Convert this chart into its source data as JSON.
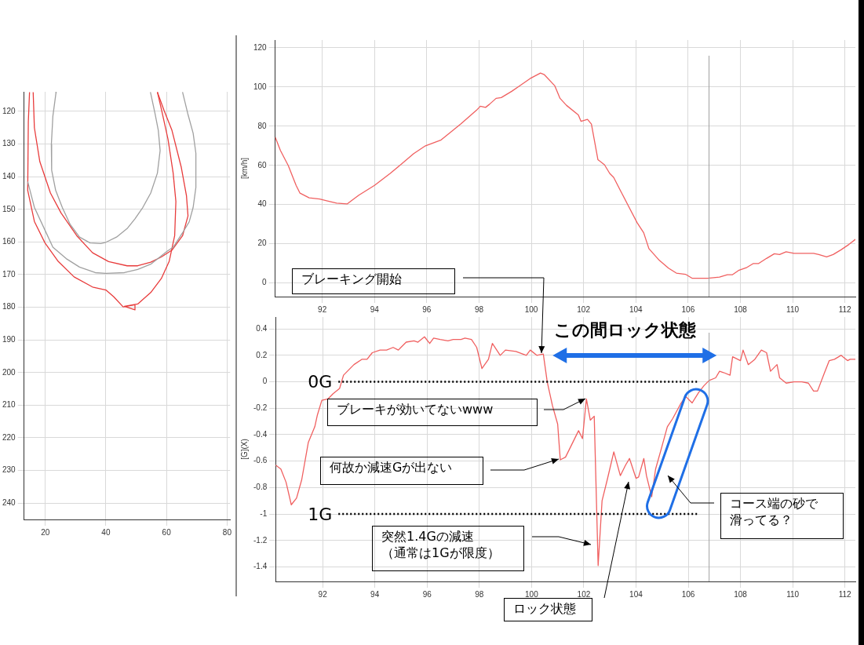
{
  "chart_data": [
    {
      "type": "line",
      "xlim": [
        13,
        81
      ],
      "ylim": [
        245,
        114
      ],
      "xticks": [
        20,
        40,
        60,
        80
      ],
      "yticks": [
        120,
        130,
        140,
        150,
        160,
        170,
        180,
        190,
        200,
        210,
        220,
        230,
        240
      ],
      "grid": true,
      "series": [
        {
          "color": "#a0a0a0",
          "x": [
            23.7,
            23.5,
            22.5,
            22,
            22.1,
            23.4,
            25.6,
            28.2,
            31.3,
            34.8,
            38.3,
            40,
            43.5,
            47,
            49.6,
            52.2,
            54.8,
            57,
            57.9,
            57.3,
            56.2,
            54.7
          ],
          "values": [
            114.1,
            114.5,
            121.5,
            130.2,
            138,
            144.1,
            149.4,
            154.6,
            158.5,
            160.3,
            160.5,
            160.1,
            158.5,
            155.9,
            152.9,
            149.4,
            145,
            138.9,
            132,
            125.8,
            120.6,
            114.1
          ]
        },
        {
          "color": "#a0a0a0",
          "x": [
            14.2,
            16.4,
            19.9,
            22.5,
            26.9,
            31.3,
            36.5,
            40,
            46.1,
            50.5,
            54.8,
            60.1,
            62.2,
            65.3,
            67.5,
            68.8,
            69.7,
            69.7,
            68.8,
            67,
            65.3
          ],
          "values": [
            141.5,
            149.4,
            156.4,
            161.6,
            165.1,
            167.7,
            169.4,
            169.6,
            169.4,
            168.4,
            166.8,
            162.9,
            161.6,
            157.2,
            153.8,
            149.4,
            143.3,
            132.8,
            126.7,
            120.6,
            114.1
          ]
        },
        {
          "color": "#e83c3c",
          "x": [
            16,
            16.4,
            18.2,
            21.7,
            25.2,
            30.4,
            35.6,
            40.9,
            47,
            50.5,
            54.8,
            58.3,
            61.8,
            65.3,
            67.1,
            66.6,
            64.9,
            61.8,
            59.2,
            57
          ],
          "values": [
            114.1,
            125,
            135.4,
            145,
            151.1,
            158.1,
            163.3,
            166,
            167.3,
            167.3,
            166.2,
            164.6,
            162.5,
            158.1,
            152,
            145.9,
            137.2,
            125.8,
            119.7,
            114.1
          ]
        },
        {
          "color": "#e83c3c",
          "x": [
            14.8,
            14.4,
            14.2,
            16.4,
            19.9,
            24.3,
            29.5,
            35.6,
            40,
            42.6,
            45.7,
            49.6,
            49.6,
            46.1,
            50.5,
            54.8,
            58.3,
            60.9,
            62.7,
            63.1,
            62.2,
            60.5,
            58.4,
            57
          ],
          "values": [
            114.1,
            123.2,
            144.2,
            153.7,
            160.3,
            166,
            170.7,
            173.8,
            174.7,
            176.8,
            179.9,
            179.2,
            180.8,
            179.7,
            179,
            175.5,
            171.2,
            165.9,
            158.1,
            147.6,
            138.9,
            128.5,
            119.7,
            114.1
          ]
        }
      ]
    },
    {
      "type": "line",
      "ylabel": "[km/h]",
      "xlim": [
        90.2,
        112.4
      ],
      "ylim": [
        -7,
        124
      ],
      "xticks": [
        92,
        94,
        96,
        98,
        100,
        102,
        104,
        106,
        108,
        110,
        112
      ],
      "yticks": [
        0,
        20,
        40,
        60,
        80,
        100,
        120
      ],
      "grid": true,
      "ref_lines": [
        {
          "axis": "x",
          "value": 106.8,
          "color": "#a0a0a0"
        }
      ],
      "series": [
        {
          "color": "#f06060",
          "x": [
            90.2,
            90.4,
            90.7,
            91,
            91.15,
            91.5,
            91.9,
            92.2,
            92.55,
            92.95,
            93.4,
            94,
            94.6,
            95.05,
            95.5,
            95.95,
            96.55,
            97.3,
            97.9,
            98.05,
            98.25,
            98.4,
            98.65,
            98.85,
            99.25,
            99.55,
            99.95,
            100.35,
            100.5,
            100.9,
            101.1,
            101.35,
            101.8,
            101.9,
            102.15,
            102.3,
            102.55,
            102.8,
            103,
            103.15,
            103.4,
            103.7,
            104.05,
            104.3,
            104.5,
            104.9,
            105.25,
            105.55,
            105.9,
            106.15,
            106.75,
            107.2,
            107.5,
            107.7,
            107.95,
            108.25,
            108.5,
            108.7,
            109,
            109.3,
            109.5,
            109.75,
            110.05,
            110.8,
            111,
            111.3,
            111.55,
            111.85,
            112.15,
            112.4
          ],
          "values": [
            74.4,
            67.6,
            59.9,
            49.8,
            45.8,
            43.4,
            42.8,
            41.8,
            40.7,
            40.3,
            44.8,
            49.8,
            55.9,
            60.9,
            66,
            70,
            73,
            81.1,
            88.1,
            90.2,
            89.6,
            91.2,
            94.2,
            94.6,
            97.8,
            100.6,
            104.3,
            107.1,
            106.3,
            100.6,
            94.2,
            90.6,
            85.7,
            82.5,
            83.5,
            81.1,
            62.9,
            60.3,
            55.9,
            53.9,
            47.4,
            39.7,
            30.7,
            25.6,
            17.5,
            11.5,
            7.5,
            5,
            4.4,
            2.4,
            2.4,
            3,
            4.2,
            4.2,
            6.5,
            7.9,
            9.9,
            9.9,
            12.5,
            14.9,
            14.5,
            15.9,
            15.1,
            15.1,
            14.5,
            13.3,
            14.5,
            16.9,
            19.6,
            22.2
          ]
        }
      ]
    },
    {
      "type": "line",
      "ylabel": "[G](X)",
      "xlim": [
        90.2,
        112.4
      ],
      "ylim": [
        -1.51,
        0.49
      ],
      "xticks": [
        92,
        94,
        96,
        98,
        100,
        102,
        104,
        106,
        108,
        110,
        112
      ],
      "yticks": [
        0.4,
        0.2,
        0,
        -0.2,
        -0.4,
        -0.6,
        -0.8,
        -1,
        -1.2,
        -1.4
      ],
      "grid": true,
      "ref_lines": [
        {
          "axis": "x",
          "value": 106.8,
          "color": "#a0a0a0"
        },
        {
          "axis": "y",
          "value": 0,
          "label": "0G",
          "color": "#000000",
          "line_style": "dotted"
        },
        {
          "axis": "y",
          "value": -1,
          "label": "1G",
          "color": "#000000",
          "line_style": "dotted"
        }
      ],
      "annotations": [
        "この間ロック状態",
        "ブレーキング開始",
        "ブレーキが効いてないwww",
        "何故か減速Gが出ない",
        "突然1.4Gの減速",
        "（通常は1Gが限度）",
        "ロック状態",
        "コース端の砂で",
        "滑ってる？"
      ],
      "series": [
        {
          "color": "#f06060",
          "x": [
            90.2,
            90.4,
            90.6,
            90.8,
            91,
            91.2,
            91.45,
            91.7,
            91.8,
            91.97,
            92.2,
            92.4,
            92.65,
            92.8,
            93.2,
            93.5,
            93.7,
            93.9,
            94.2,
            94.45,
            94.7,
            94.9,
            95.2,
            95.5,
            95.65,
            95.9,
            96.1,
            96.25,
            96.5,
            96.8,
            97,
            97.3,
            97.45,
            97.7,
            97.9,
            98.1,
            98.35,
            98.5,
            98.8,
            99,
            99.4,
            99.8,
            99.95,
            100.2,
            100.45,
            100.6,
            100.8,
            101,
            101.1,
            101.3,
            101.6,
            101.8,
            101.95,
            102.1,
            102.25,
            102.4,
            102.55,
            102.7,
            102.9,
            103.15,
            103.4,
            103.6,
            103.75,
            104,
            104.1,
            104.3,
            104.4,
            104.6,
            104.75,
            104.95,
            105.2,
            105.4,
            105.7,
            105.9,
            106.15,
            106.4,
            106.6,
            106.8,
            107.05,
            107.2,
            107.35,
            107.6,
            107.7,
            108,
            108.1,
            108.3,
            108.55,
            108.8,
            109,
            109.15,
            109.4,
            109.5,
            109.75,
            110.05,
            110.35,
            110.6,
            110.8,
            110.95,
            111.2,
            111.4,
            111.6,
            111.85,
            112.1,
            112.2,
            112.4
          ],
          "values": [
            -0.63,
            -0.66,
            -0.76,
            -0.93,
            -0.88,
            -0.74,
            -0.46,
            -0.34,
            -0.25,
            -0.14,
            -0.13,
            -0.09,
            -0.05,
            0.05,
            0.13,
            0.17,
            0.17,
            0.22,
            0.24,
            0.24,
            0.26,
            0.24,
            0.3,
            0.31,
            0.3,
            0.34,
            0.29,
            0.33,
            0.32,
            0.31,
            0.32,
            0.32,
            0.33,
            0.32,
            0.26,
            0.1,
            0.17,
            0.29,
            0.2,
            0.24,
            0.23,
            0.2,
            0.24,
            0.2,
            0.21,
            0,
            -0.18,
            -0.32,
            -0.59,
            -0.57,
            -0.45,
            -0.37,
            -0.43,
            -0.13,
            -0.29,
            -0.26,
            -1.39,
            -0.9,
            -0.74,
            -0.53,
            -0.71,
            -0.63,
            -0.58,
            -0.73,
            -0.72,
            -0.58,
            -0.71,
            -0.87,
            -0.66,
            -0.52,
            -0.34,
            -0.28,
            -0.17,
            -0.11,
            -0.16,
            -0.08,
            -0.03,
            0.01,
            0.03,
            0.08,
            0.07,
            0.05,
            0.19,
            0.16,
            0.24,
            0.13,
            0.17,
            0.24,
            0.22,
            0.08,
            0.13,
            0.03,
            -0.01,
            0,
            0,
            -0.01,
            -0.07,
            -0.07,
            0.06,
            0.16,
            0.17,
            0.2,
            0.16,
            0.17,
            0.17
          ]
        }
      ]
    }
  ]
}
